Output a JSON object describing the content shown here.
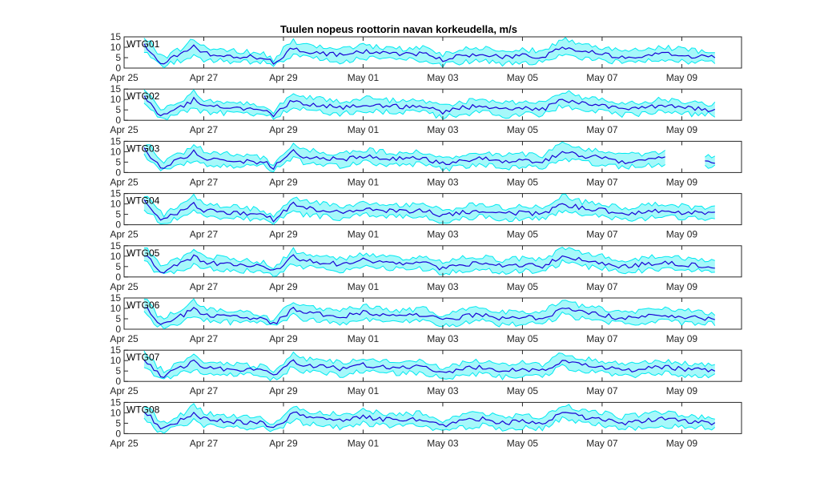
{
  "figure": {
    "title": "Tuulen nopeus roottorin navan korkeudella, m/s"
  },
  "chart_data": {
    "type": "line",
    "title": "Tuulen nopeus roottorin navan korkeudella, m/s",
    "xlabel": "",
    "ylabel": "",
    "x_ticks": [
      {
        "date": "2025-04-25",
        "label": "Apr 25"
      },
      {
        "date": "2025-04-27",
        "label": "Apr 27"
      },
      {
        "date": "2025-04-29",
        "label": "Apr 29"
      },
      {
        "date": "2025-05-01",
        "label": "May 01"
      },
      {
        "date": "2025-05-03",
        "label": "May 03"
      },
      {
        "date": "2025-05-05",
        "label": "May 05"
      },
      {
        "date": "2025-05-07",
        "label": "May 07"
      },
      {
        "date": "2025-05-09",
        "label": "May 09"
      }
    ],
    "xlim": [
      "2025-04-25",
      "2025-05-10 12:00"
    ],
    "data_range": [
      "2025-04-25 12:00",
      "2025-05-09 20:00"
    ],
    "ylim": [
      0,
      15
    ],
    "y_ticks": [
      0,
      5,
      10,
      15
    ],
    "grid": false,
    "colors": {
      "mean": "#1a00d4",
      "range": "#00eaf0",
      "frame": "#262626"
    },
    "panels": [
      {
        "label": "WTG01"
      },
      {
        "label": "WTG02"
      },
      {
        "label": "WTG03",
        "gaps": [
          [
            "2025-05-08 15:00",
            "2025-05-09 13:00"
          ]
        ]
      },
      {
        "label": "WTG04"
      },
      {
        "label": "WTG05"
      },
      {
        "label": "WTG06"
      },
      {
        "label": "WTG07"
      },
      {
        "label": "WTG08"
      }
    ],
    "profile": [
      {
        "date": "2025-04-25 12:00",
        "mean": 11,
        "low": 8,
        "high": 14
      },
      {
        "date": "2025-04-25 16:00",
        "mean": 8,
        "low": 5,
        "high": 12
      },
      {
        "date": "2025-04-25 20:00",
        "mean": 4,
        "low": 2,
        "high": 7
      },
      {
        "date": "2025-04-26 00:00",
        "mean": 2.5,
        "low": 1,
        "high": 5
      },
      {
        "date": "2025-04-26 06:00",
        "mean": 5,
        "low": 2.5,
        "high": 8
      },
      {
        "date": "2025-04-26 12:00",
        "mean": 7,
        "low": 4,
        "high": 10
      },
      {
        "date": "2025-04-26 18:00",
        "mean": 10,
        "low": 6,
        "high": 14
      },
      {
        "date": "2025-04-27 00:00",
        "mean": 7,
        "low": 4,
        "high": 10
      },
      {
        "date": "2025-04-27 12:00",
        "mean": 6,
        "low": 3.5,
        "high": 9
      },
      {
        "date": "2025-04-28 00:00",
        "mean": 5.5,
        "low": 3,
        "high": 8
      },
      {
        "date": "2025-04-28 12:00",
        "mean": 5,
        "low": 3,
        "high": 7
      },
      {
        "date": "2025-04-28 18:00",
        "mean": 2.5,
        "low": 1,
        "high": 4
      },
      {
        "date": "2025-04-29 00:00",
        "mean": 6,
        "low": 3.5,
        "high": 9
      },
      {
        "date": "2025-04-29 06:00",
        "mean": 10,
        "low": 7,
        "high": 13
      },
      {
        "date": "2025-04-29 12:00",
        "mean": 8,
        "low": 5,
        "high": 11
      },
      {
        "date": "2025-04-30 00:00",
        "mean": 7,
        "low": 4,
        "high": 10
      },
      {
        "date": "2025-04-30 12:00",
        "mean": 6,
        "low": 3,
        "high": 9
      },
      {
        "date": "2025-05-01 00:00",
        "mean": 8,
        "low": 5,
        "high": 11
      },
      {
        "date": "2025-05-01 12:00",
        "mean": 7,
        "low": 4,
        "high": 10
      },
      {
        "date": "2025-05-02 00:00",
        "mean": 6.5,
        "low": 4,
        "high": 9
      },
      {
        "date": "2025-05-02 12:00",
        "mean": 7,
        "low": 4,
        "high": 10
      },
      {
        "date": "2025-05-03 00:00",
        "mean": 4,
        "low": 1.5,
        "high": 6.5
      },
      {
        "date": "2025-05-03 12:00",
        "mean": 6,
        "low": 3,
        "high": 9
      },
      {
        "date": "2025-05-04 00:00",
        "mean": 7,
        "low": 4,
        "high": 10
      },
      {
        "date": "2025-05-04 12:00",
        "mean": 5,
        "low": 2,
        "high": 8
      },
      {
        "date": "2025-05-05 00:00",
        "mean": 6,
        "low": 3,
        "high": 9
      },
      {
        "date": "2025-05-05 12:00",
        "mean": 5,
        "low": 2.5,
        "high": 8
      },
      {
        "date": "2025-05-06 00:00",
        "mean": 10,
        "low": 7,
        "high": 14
      },
      {
        "date": "2025-05-06 12:00",
        "mean": 8,
        "low": 5,
        "high": 11
      },
      {
        "date": "2025-05-07 00:00",
        "mean": 7,
        "low": 4,
        "high": 10
      },
      {
        "date": "2025-05-07 12:00",
        "mean": 5,
        "low": 2.5,
        "high": 8
      },
      {
        "date": "2025-05-08 00:00",
        "mean": 6,
        "low": 3,
        "high": 9
      },
      {
        "date": "2025-05-08 12:00",
        "mean": 7,
        "low": 4,
        "high": 10
      },
      {
        "date": "2025-05-09 00:00",
        "mean": 6,
        "low": 3,
        "high": 9
      },
      {
        "date": "2025-05-09 12:00",
        "mean": 5.5,
        "low": 3,
        "high": 8
      },
      {
        "date": "2025-05-09 20:00",
        "mean": 5,
        "low": 2.5,
        "high": 8
      }
    ]
  }
}
